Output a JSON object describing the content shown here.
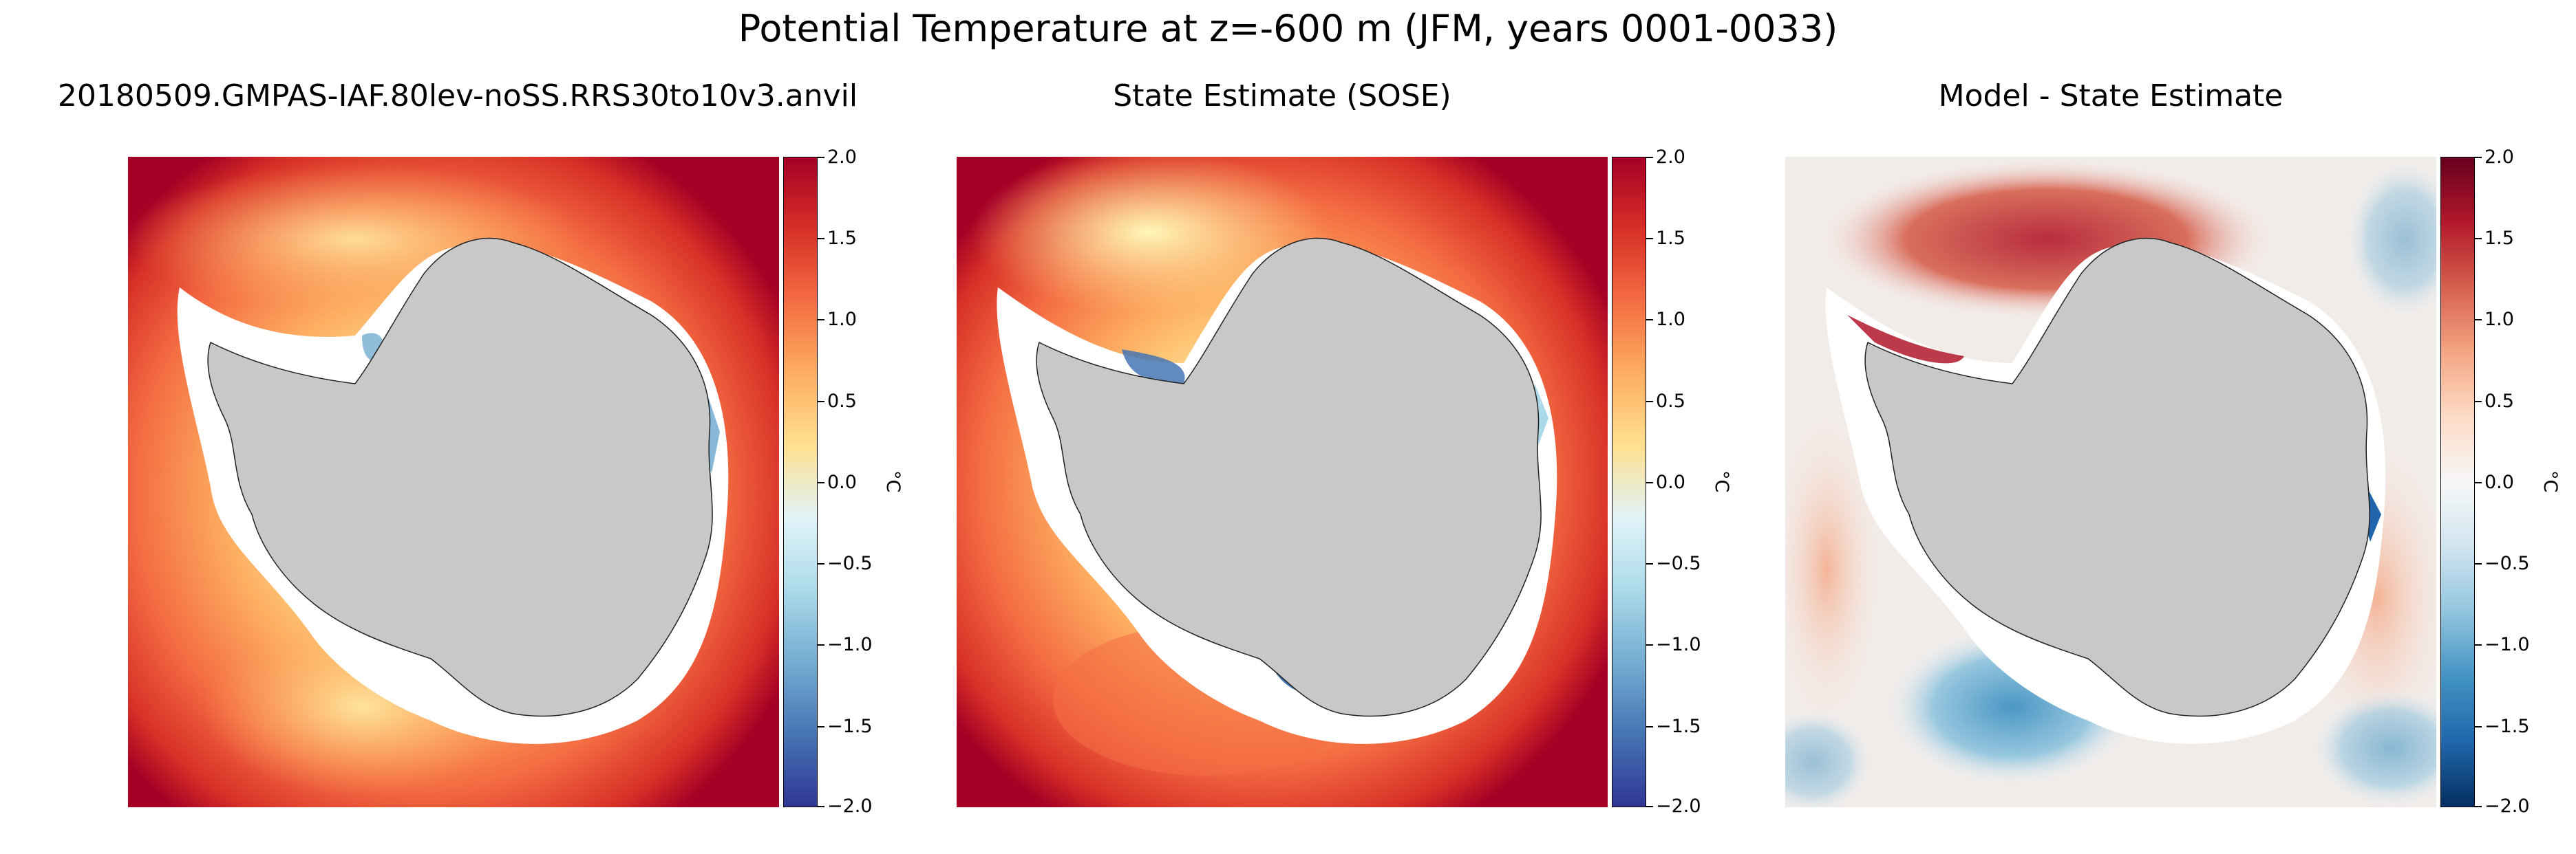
{
  "figure": {
    "suptitle": "Potential Temperature at z=-600 m (JFM, years 0001-0033)"
  },
  "chart_data": [
    {
      "type": "heatmap",
      "title": "20180509.GMPAS-IAF.80lev-noSS.RRS30to10v3.anvil",
      "projection": "south polar stereographic",
      "colormap": "RdYlBu_r",
      "colorbar": {
        "label": "°C",
        "range": [
          -2.0,
          2.0
        ],
        "ticks": [
          "2.0",
          "1.5",
          "1.0",
          "0.5",
          "0.0",
          "−0.5",
          "−1.0",
          "−1.5",
          "−2.0"
        ]
      },
      "colors": {
        "land": "#c8c8c8",
        "masked": "#ffffff"
      }
    },
    {
      "type": "heatmap",
      "title": "State Estimate (SOSE)",
      "projection": "south polar stereographic",
      "colormap": "RdYlBu_r",
      "colorbar": {
        "label": "°C",
        "range": [
          -2.0,
          2.0
        ],
        "ticks": [
          "2.0",
          "1.5",
          "1.0",
          "0.5",
          "0.0",
          "−0.5",
          "−1.0",
          "−1.5",
          "−2.0"
        ]
      },
      "colors": {
        "land": "#c8c8c8",
        "masked": "#ffffff"
      }
    },
    {
      "type": "heatmap",
      "title": "Model - State Estimate",
      "projection": "south polar stereographic",
      "colormap": "RdBu_r",
      "colorbar": {
        "label": "°C",
        "range": [
          -2.0,
          2.0
        ],
        "ticks": [
          "2.0",
          "1.5",
          "1.0",
          "0.5",
          "0.0",
          "−0.5",
          "−1.0",
          "−1.5",
          "−2.0"
        ]
      },
      "colors": {
        "land": "#c8c8c8",
        "masked": "#ffffff"
      }
    }
  ]
}
